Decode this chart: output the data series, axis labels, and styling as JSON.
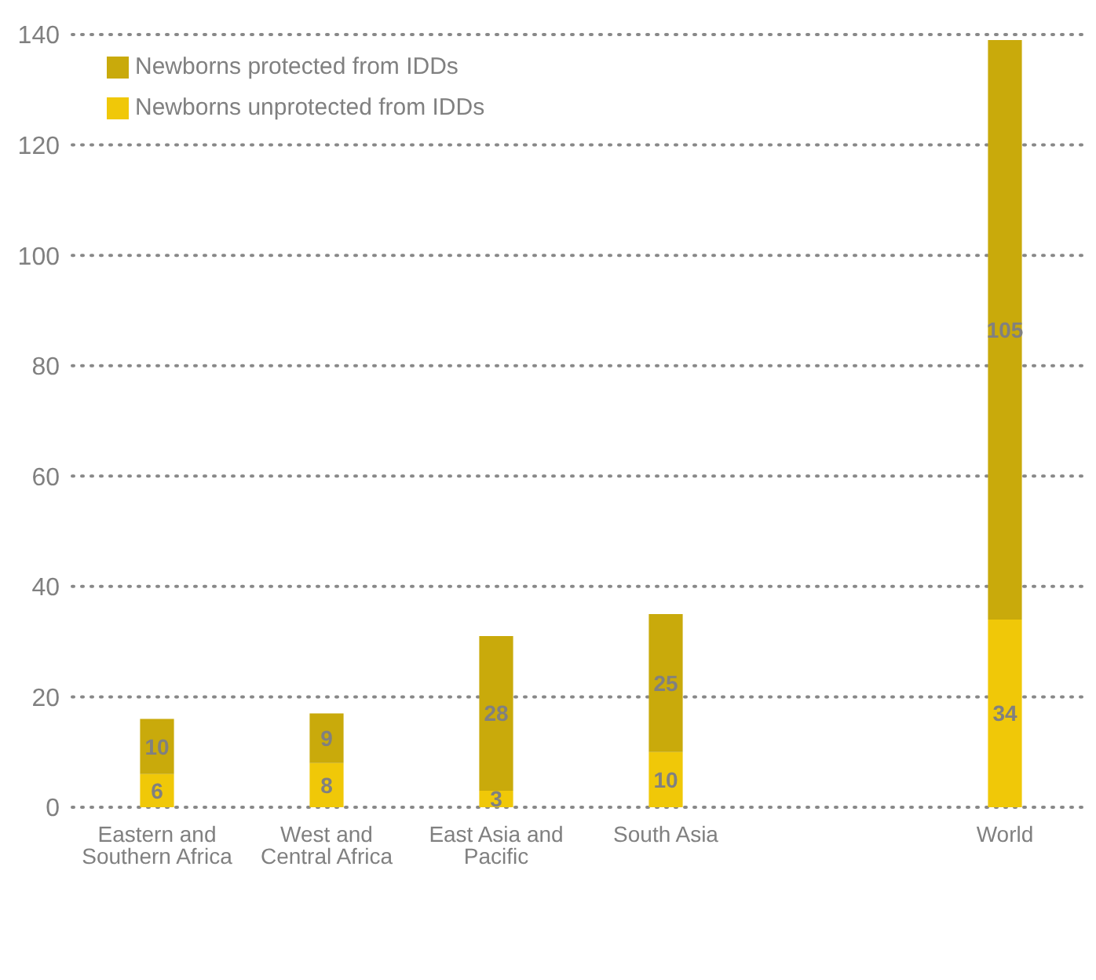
{
  "chart_data": {
    "type": "bar",
    "stacked": true,
    "categories": [
      "Eastern and Southern Africa",
      "West and Central Africa",
      "East Asia and Pacific",
      "South Asia",
      null,
      "World"
    ],
    "series": [
      {
        "name": "Newborns unprotected from IDDs",
        "color": "#f0c808",
        "values": [
          6,
          8,
          3,
          10,
          null,
          34
        ]
      },
      {
        "name": "Newborns protected from IDDs",
        "color": "#c9aa0b",
        "values": [
          10,
          9,
          28,
          25,
          null,
          105
        ]
      }
    ],
    "ylim": [
      0,
      140
    ],
    "yticks": [
      0,
      20,
      40,
      60,
      80,
      100,
      120,
      140
    ],
    "grid": "y",
    "legend": "top left",
    "data_labels": true
  }
}
